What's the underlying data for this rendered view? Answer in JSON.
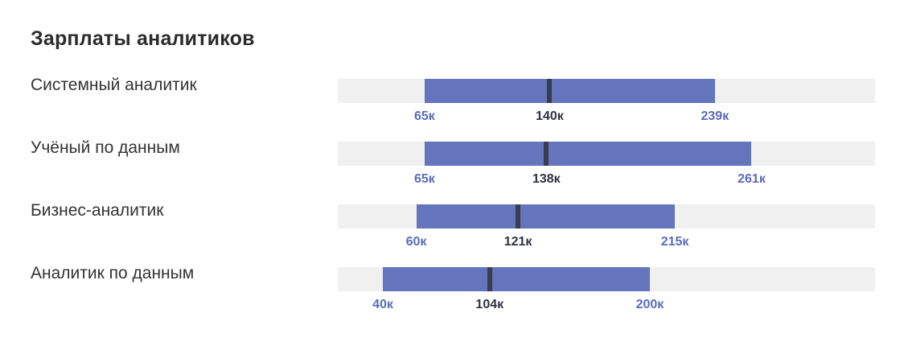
{
  "title": "Зарплаты аналитиков",
  "colors": {
    "range": "#6475bd",
    "median": "#3a3d4d",
    "track": "#f0f0f0",
    "range_label": "#5b6cb8",
    "median_label": "#2f3240"
  },
  "chart_data": {
    "type": "bar",
    "subtype": "range-with-median",
    "title": "Зарплаты аналитиков",
    "xlim": [
      13,
      335
    ],
    "unit": "к",
    "rows": [
      {
        "label": "Системный аналитик",
        "min": 65,
        "median": 140,
        "max": 239,
        "min_label": "65к",
        "median_label": "140к",
        "max_label": "239к"
      },
      {
        "label": "Учёный по данным",
        "min": 65,
        "median": 138,
        "max": 261,
        "min_label": "65к",
        "median_label": "138к",
        "max_label": "261к"
      },
      {
        "label": "Бизнес-аналитик",
        "min": 60,
        "median": 121,
        "max": 215,
        "min_label": "60к",
        "median_label": "121к",
        "max_label": "215к"
      },
      {
        "label": "Аналитик по данным",
        "min": 40,
        "median": 104,
        "max": 200,
        "min_label": "40к",
        "median_label": "104к",
        "max_label": "200к"
      }
    ]
  }
}
